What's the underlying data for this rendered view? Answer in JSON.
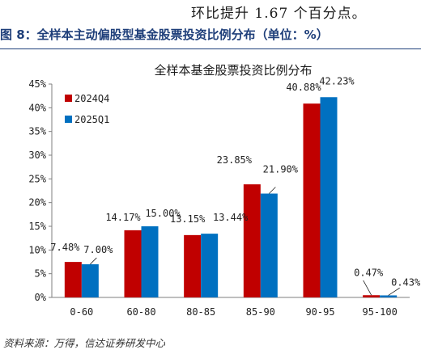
{
  "header": {
    "prev_text": "环比提升 1.67 个百分点。",
    "figure_title": "图 8：全样本主动偏股型基金股票投资比例分布（单位：%）"
  },
  "footer": {
    "source": "资料来源：万得，信达证券研发中心"
  },
  "colors": {
    "series_2024Q4": "#c00000",
    "series_2025Q1": "#0070c0",
    "title_blue": "#1f3f7a"
  },
  "chart_data": {
    "type": "bar",
    "title": "全样本基金股票投资比例分布",
    "xlabel": "",
    "ylabel": "",
    "categories": [
      "0-60",
      "60-80",
      "80-85",
      "85-90",
      "90-95",
      "95-100"
    ],
    "series": [
      {
        "name": "2024Q4",
        "values": [
          7.48,
          14.17,
          13.15,
          23.85,
          40.88,
          0.47
        ],
        "labels": [
          "7.48%",
          "14.17%",
          "13.15%",
          "23.85%",
          "40.88%",
          "0.47%"
        ]
      },
      {
        "name": "2025Q1",
        "values": [
          7.0,
          15.0,
          13.44,
          21.9,
          42.23,
          0.43
        ],
        "labels": [
          "7.00%",
          "15.00%",
          "13.44%",
          "21.90%",
          "42.23%",
          "0.43%"
        ]
      }
    ],
    "ylim": [
      0,
      45
    ],
    "yticks": [
      "0%",
      "5%",
      "10%",
      "15%",
      "20%",
      "25%",
      "30%",
      "35%",
      "40%",
      "45%"
    ],
    "grid": false,
    "legend": "top-left"
  }
}
